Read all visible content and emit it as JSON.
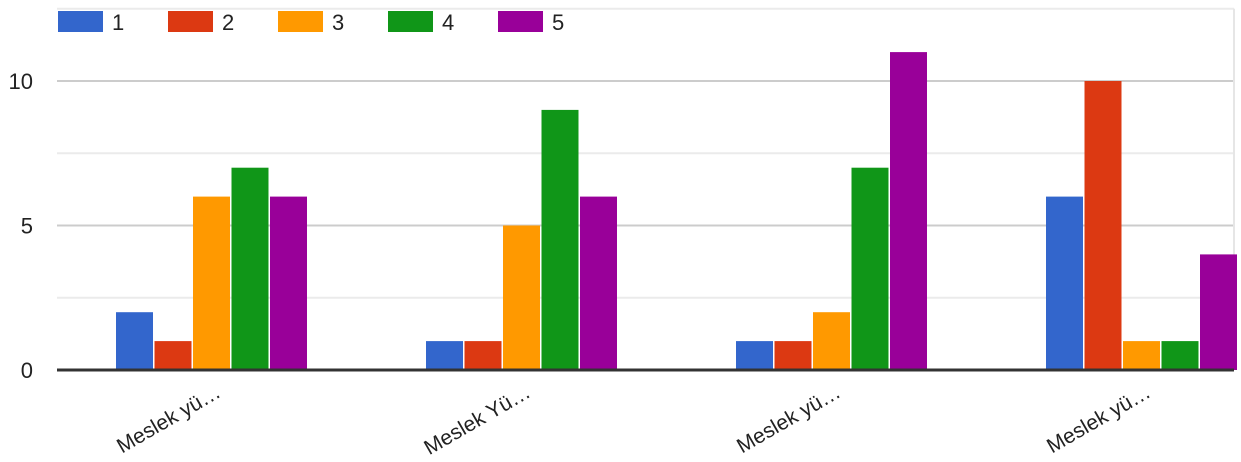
{
  "chart_data": {
    "type": "bar",
    "categories": [
      "Meslek yü…",
      "Meslek Yü…",
      "Meslek yü…",
      "Meslek yü…"
    ],
    "series": [
      {
        "name": "1",
        "color": "#3366cc",
        "values": [
          2,
          1,
          1,
          6
        ]
      },
      {
        "name": "2",
        "color": "#dc3912",
        "values": [
          1,
          1,
          1,
          10
        ]
      },
      {
        "name": "3",
        "color": "#ff9900",
        "values": [
          6,
          5,
          2,
          1
        ]
      },
      {
        "name": "4",
        "color": "#109618",
        "values": [
          7,
          9,
          7,
          1
        ]
      },
      {
        "name": "5",
        "color": "#990099",
        "values": [
          6,
          6,
          11,
          4
        ]
      }
    ],
    "y_ticks": [
      "0",
      "5",
      "10"
    ],
    "ylim": [
      0,
      12.5
    ],
    "grid": true,
    "legend": "top-left"
  }
}
